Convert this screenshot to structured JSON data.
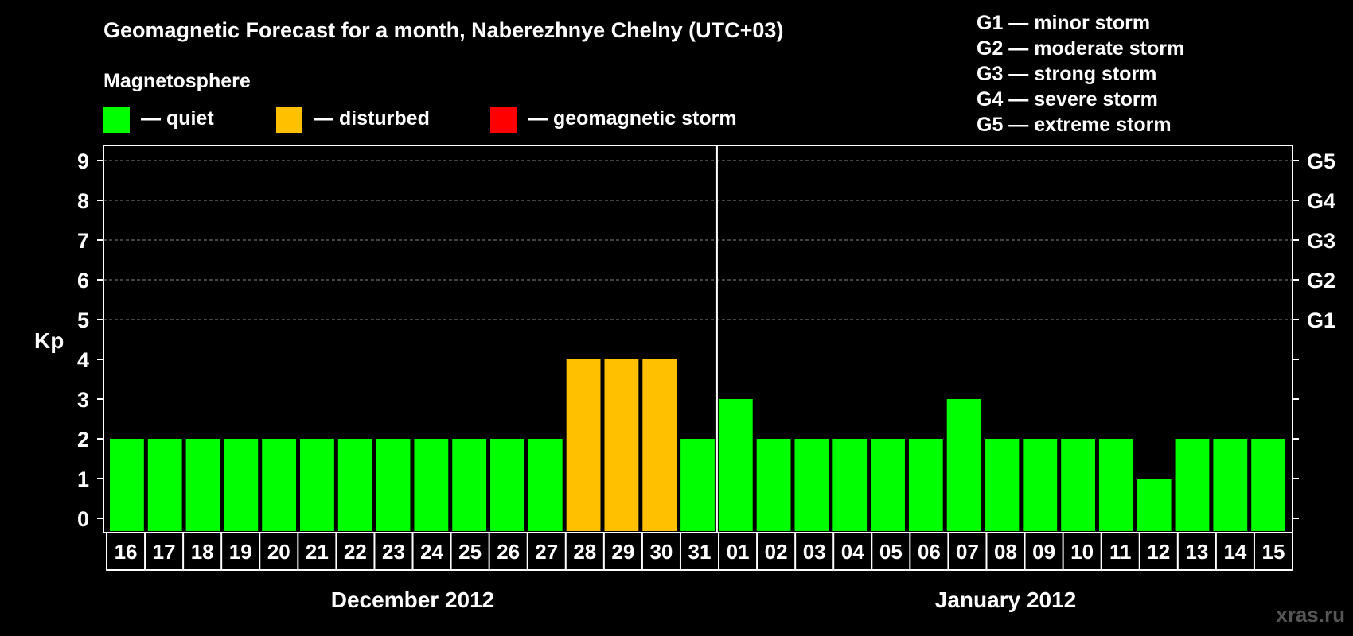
{
  "chart_data": {
    "type": "bar",
    "title": "Geomagnetic Forecast for a month, Naberezhnye Chelny (UTC+03)",
    "ylabel": "Kp",
    "ylim": [
      0,
      9
    ],
    "yticks": [
      "0",
      "1",
      "2",
      "3",
      "4",
      "5",
      "6",
      "7",
      "8",
      "9"
    ],
    "right_axis_labels": [
      {
        "kp": 5,
        "label": "G1"
      },
      {
        "kp": 6,
        "label": "G2"
      },
      {
        "kp": 7,
        "label": "G3"
      },
      {
        "kp": 8,
        "label": "G4"
      },
      {
        "kp": 9,
        "label": "G5"
      }
    ],
    "legend_title": "Magnetosphere",
    "legend": [
      {
        "key": "quiet",
        "label": "— quiet",
        "color": "#00ff00"
      },
      {
        "key": "disturbed",
        "label": "— disturbed",
        "color": "#ffc000"
      },
      {
        "key": "storm",
        "label": "— geomagnetic storm",
        "color": "#ff0000"
      }
    ],
    "storm_scale": [
      "G1 — minor storm",
      "G2 — moderate storm",
      "G3 — strong storm",
      "G4 — severe storm",
      "G5 — extreme storm"
    ],
    "categories": [
      "16",
      "17",
      "18",
      "19",
      "20",
      "21",
      "22",
      "23",
      "24",
      "25",
      "26",
      "27",
      "28",
      "29",
      "30",
      "31",
      "01",
      "02",
      "03",
      "04",
      "05",
      "06",
      "07",
      "08",
      "09",
      "10",
      "11",
      "12",
      "13",
      "14",
      "15"
    ],
    "values": [
      2,
      2,
      2,
      2,
      2,
      2,
      2,
      2,
      2,
      2,
      2,
      2,
      4,
      4,
      4,
      2,
      3,
      2,
      2,
      2,
      2,
      2,
      3,
      2,
      2,
      2,
      2,
      1,
      2,
      2,
      2
    ],
    "status": [
      "quiet",
      "quiet",
      "quiet",
      "quiet",
      "quiet",
      "quiet",
      "quiet",
      "quiet",
      "quiet",
      "quiet",
      "quiet",
      "quiet",
      "disturbed",
      "disturbed",
      "disturbed",
      "quiet",
      "quiet",
      "quiet",
      "quiet",
      "quiet",
      "quiet",
      "quiet",
      "quiet",
      "quiet",
      "quiet",
      "quiet",
      "quiet",
      "quiet",
      "quiet",
      "quiet",
      "quiet"
    ],
    "months": [
      {
        "label": "December 2012",
        "first_index": 0,
        "last_index": 15
      },
      {
        "label": "January 2012",
        "first_index": 16,
        "last_index": 30
      }
    ],
    "grid": true
  },
  "watermark": "xras.ru"
}
